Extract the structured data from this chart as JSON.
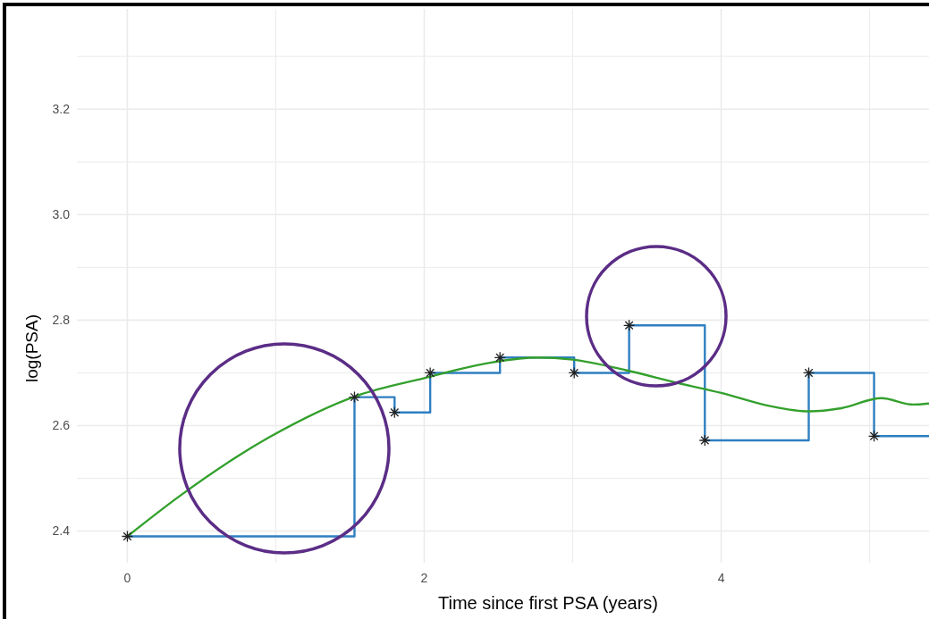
{
  "chart_data": {
    "type": "line",
    "xlabel": "Time since first PSA (years)",
    "ylabel": "log(PSA)",
    "xlim": [
      -0.34,
      5.4
    ],
    "ylim": [
      2.34,
      3.39
    ],
    "xticks": [
      0,
      {
        "value": 1,
        "label": null
      },
      2,
      {
        "value": 3,
        "label": null
      },
      4,
      {
        "value": 5,
        "label": null
      }
    ],
    "yticks": [
      2.4,
      {
        "value": 2.5,
        "label": null
      },
      2.6,
      {
        "value": 2.7,
        "label": null
      },
      2.8,
      {
        "value": 2.9,
        "label": null
      },
      "3.0",
      {
        "value": 3.1,
        "label": null
      },
      3.2,
      {
        "value": 3.3,
        "label": null
      }
    ],
    "grid": true,
    "series": [
      {
        "type": "step",
        "color": "#2f7fc1",
        "marker": "none",
        "x": [
          0,
          1.53,
          1.8,
          2.04,
          2.51,
          3.01,
          3.38,
          3.89,
          4.59,
          5.03,
          5.4
        ],
        "values": [
          2.39,
          2.654,
          2.625,
          2.7,
          2.729,
          2.7,
          2.79,
          2.572,
          2.7,
          2.58,
          2.58
        ]
      },
      {
        "color": "#33a02c",
        "marker": "none",
        "x": [
          0,
          0.35,
          0.95,
          1.55,
          2,
          2.46,
          2.76,
          3,
          3.36,
          3.72,
          4,
          4.33,
          4.59,
          4.81,
          5.08,
          5.29,
          5.4
        ],
        "values": [
          2.39,
          2.466,
          2.577,
          2.657,
          2.69,
          2.72,
          2.729,
          2.725,
          2.705,
          2.68,
          2.662,
          2.637,
          2.627,
          2.633,
          2.652,
          2.64,
          2.642
        ]
      },
      {
        "type": "scatter",
        "color": "#222222",
        "marker": "cross",
        "x": [
          0,
          1.53,
          1.8,
          2.04,
          2.51,
          3.01,
          3.38,
          3.89,
          4.59,
          5.03
        ],
        "values": [
          2.39,
          2.654,
          2.625,
          2.7,
          2.729,
          2.7,
          2.79,
          2.572,
          2.7,
          2.58
        ]
      }
    ]
  }
}
